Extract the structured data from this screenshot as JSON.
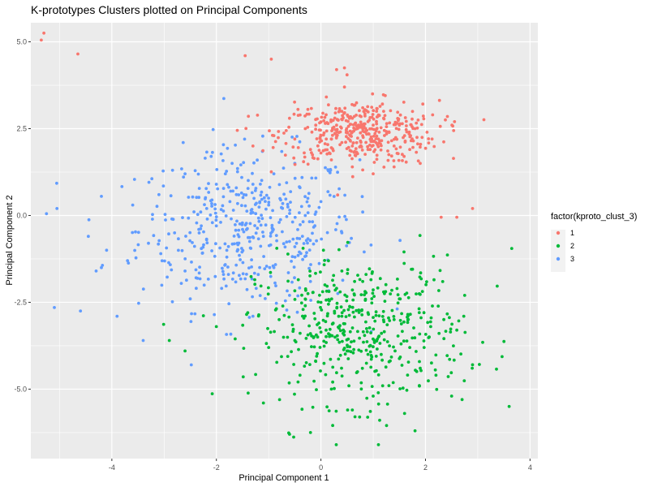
{
  "chart_data": {
    "type": "scatter",
    "title": "K-prototypes Clusters plotted on Principal Components",
    "xlabel": "Principal Component 1",
    "ylabel": "Principal Component 2",
    "xlim": [
      -5.55,
      4.15
    ],
    "ylim": [
      -7.0,
      5.55
    ],
    "x_ticks": [
      -4,
      -2,
      0,
      2,
      4
    ],
    "x_tick_labels": [
      "-4",
      "-2",
      "0",
      "2",
      "4"
    ],
    "y_ticks": [
      5.0,
      2.5,
      0.0,
      -2.5,
      -5.0
    ],
    "y_tick_labels": [
      "5.0",
      "2.5",
      "0.0",
      "-2.5",
      "-5.0"
    ],
    "grid": true,
    "background": "#ebebeb",
    "legend": {
      "title": "factor(kproto_clust_3)",
      "position": "right",
      "entries": [
        {
          "label": "1",
          "color": "#f8766d"
        },
        {
          "label": "2",
          "color": "#00ba38"
        },
        {
          "label": "3",
          "color": "#619cff"
        }
      ]
    },
    "series": [
      {
        "name": "1",
        "color": "#f8766d",
        "points": [
          [
            -5.3,
            5.25
          ],
          [
            -5.35,
            5.05
          ],
          [
            -4.65,
            4.65
          ],
          [
            -1.45,
            4.6
          ],
          [
            -0.95,
            4.5
          ],
          [
            0.3,
            4.2
          ],
          [
            0.45,
            4.25
          ],
          [
            0.5,
            4.05
          ],
          [
            0.45,
            3.7
          ],
          [
            2.9,
            0.2
          ],
          [
            2.6,
            -0.05
          ],
          [
            2.3,
            -0.05
          ],
          [
            -1.6,
            2.45
          ],
          [
            -1.3,
            2.0
          ],
          [
            -0.9,
            2.3
          ],
          [
            -0.5,
            2.2
          ],
          [
            -0.3,
            2.5
          ],
          [
            -0.1,
            2.6
          ],
          [
            0.0,
            2.3
          ],
          [
            0.1,
            2.9
          ],
          [
            0.2,
            2.2
          ],
          [
            0.3,
            2.6
          ],
          [
            0.4,
            2.1
          ],
          [
            0.5,
            2.4
          ],
          [
            0.6,
            2.8
          ],
          [
            0.7,
            2.5
          ],
          [
            0.8,
            2.3
          ],
          [
            0.9,
            2.7
          ],
          [
            1.0,
            2.6
          ],
          [
            1.1,
            2.2
          ],
          [
            1.2,
            2.8
          ],
          [
            1.3,
            2.4
          ],
          [
            1.4,
            2.0
          ],
          [
            1.5,
            2.6
          ],
          [
            1.6,
            2.3
          ],
          [
            1.7,
            1.9
          ],
          [
            1.8,
            2.5
          ],
          [
            1.9,
            1.5
          ],
          [
            0.0,
            1.8
          ],
          [
            0.2,
            1.6
          ],
          [
            0.6,
            1.4
          ],
          [
            1.0,
            1.2
          ],
          [
            1.4,
            1.4
          ],
          [
            -0.6,
            2.8
          ],
          [
            -0.2,
            1.9
          ],
          [
            0.4,
            3.0
          ],
          [
            0.8,
            3.1
          ],
          [
            1.2,
            3.0
          ],
          [
            0.6,
            2.0
          ],
          [
            0.9,
            1.9
          ]
        ]
      },
      {
        "name": "2",
        "color": "#00ba38",
        "points": [
          [
            3.65,
            -0.95
          ],
          [
            2.75,
            -2.3
          ],
          [
            2.6,
            -3.3
          ],
          [
            3.6,
            -5.5
          ],
          [
            2.7,
            -5.3
          ],
          [
            -2.9,
            -3.6
          ],
          [
            -2.6,
            -3.9
          ],
          [
            -2.0,
            -3.2
          ],
          [
            -1.4,
            -2.8
          ],
          [
            -1.1,
            -5.4
          ],
          [
            -0.6,
            -6.3
          ],
          [
            -0.2,
            -6.25
          ],
          [
            1.1,
            -6.6
          ],
          [
            1.8,
            -6.2
          ],
          [
            2.5,
            -5.2
          ],
          [
            -0.8,
            -3.0
          ],
          [
            -0.5,
            -3.6
          ],
          [
            -0.3,
            -2.6
          ],
          [
            -0.1,
            -4.2
          ],
          [
            0.1,
            -3.3
          ],
          [
            0.3,
            -2.1
          ],
          [
            0.5,
            -3.9
          ],
          [
            0.7,
            -4.5
          ],
          [
            0.9,
            -2.8
          ],
          [
            1.1,
            -3.5
          ],
          [
            1.3,
            -4.9
          ],
          [
            1.5,
            -2.4
          ],
          [
            1.7,
            -3.8
          ],
          [
            1.9,
            -4.4
          ],
          [
            2.1,
            -3.2
          ],
          [
            0.2,
            -5.0
          ],
          [
            0.6,
            -5.6
          ],
          [
            1.0,
            -5.2
          ],
          [
            0.4,
            -1.6
          ],
          [
            0.8,
            -1.9
          ],
          [
            1.2,
            -2.2
          ],
          [
            -1.0,
            -3.8
          ],
          [
            -0.4,
            -4.6
          ],
          [
            0.0,
            -2.5
          ],
          [
            1.6,
            -5.7
          ],
          [
            2.2,
            -4.6
          ],
          [
            1.4,
            -3.0
          ],
          [
            0.4,
            -2.9
          ],
          [
            -0.2,
            -3.4
          ],
          [
            0.9,
            -4.0
          ]
        ]
      },
      {
        "name": "3",
        "color": "#619cff",
        "points": [
          [
            -5.05,
            0.2
          ],
          [
            -5.25,
            0.05
          ],
          [
            -5.1,
            -2.65
          ],
          [
            -4.6,
            -2.75
          ],
          [
            -3.9,
            -2.9
          ],
          [
            -3.4,
            -3.6
          ],
          [
            -4.2,
            0.55
          ],
          [
            -4.45,
            -0.6
          ],
          [
            -4.1,
            -1.0
          ],
          [
            -4.2,
            -1.5
          ],
          [
            -4.3,
            -1.6
          ],
          [
            -3.7,
            -1.3
          ],
          [
            -2.6,
            -1.6
          ],
          [
            -1.8,
            -1.2
          ],
          [
            -1.5,
            -0.4
          ],
          [
            -1.0,
            0.3
          ],
          [
            -0.5,
            -0.9
          ],
          [
            -0.2,
            -1.9
          ],
          [
            -2.3,
            0.1
          ],
          [
            -2.0,
            0.9
          ],
          [
            -1.6,
            -0.8
          ],
          [
            -1.2,
            -1.7
          ],
          [
            -0.8,
            -0.2
          ],
          [
            -0.4,
            0.8
          ],
          [
            0.0,
            0.4
          ],
          [
            0.4,
            -0.5
          ],
          [
            0.8,
            0.1
          ],
          [
            -2.8,
            -0.5
          ],
          [
            -3.1,
            0.6
          ],
          [
            -2.5,
            -2.4
          ],
          [
            -1.9,
            -2.1
          ],
          [
            -1.3,
            -2.9
          ],
          [
            -0.9,
            -1.5
          ],
          [
            -0.6,
            -2.3
          ],
          [
            -2.6,
            1.2
          ],
          [
            -2.1,
            1.7
          ],
          [
            -1.7,
            1.5
          ],
          [
            -1.3,
            0.9
          ],
          [
            -0.9,
            1.2
          ],
          [
            -0.5,
            1.5
          ],
          [
            -3.6,
            0.3
          ],
          [
            -3.3,
            -0.8
          ],
          [
            -2.0,
            -0.3
          ],
          [
            -1.1,
            -0.6
          ],
          [
            -0.3,
            0.0
          ]
        ]
      }
    ]
  }
}
